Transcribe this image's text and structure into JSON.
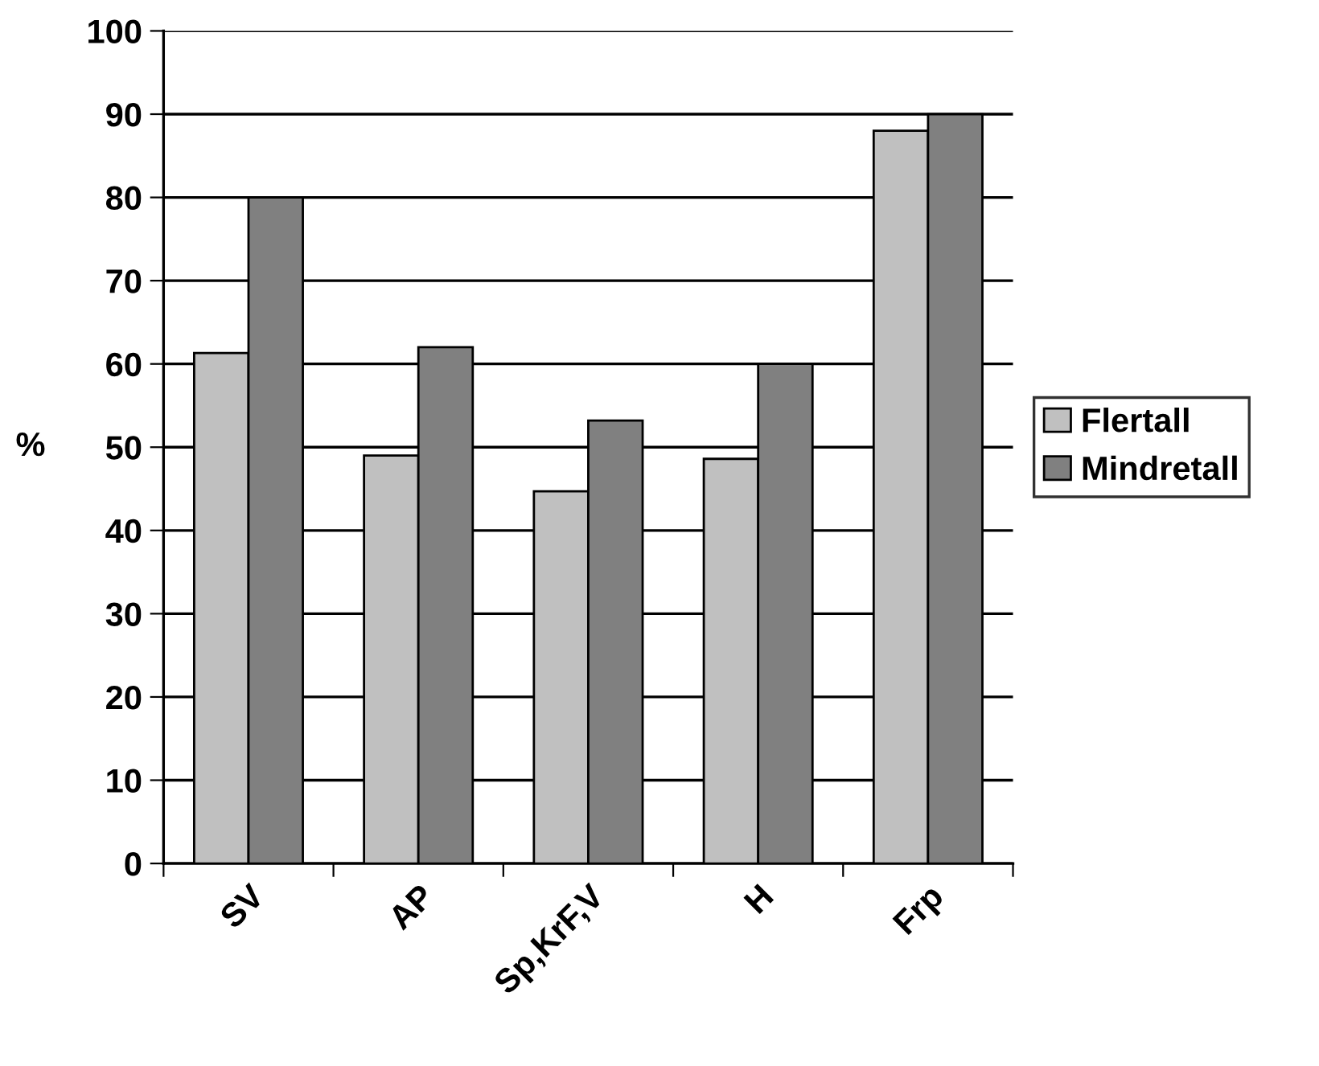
{
  "chart_data": {
    "type": "bar",
    "ylabel": "%",
    "categories": [
      "SV",
      "AP",
      "Sp,KrF,V",
      "H",
      "Frp"
    ],
    "series": [
      {
        "name": "Flertall",
        "color": "#c0c0c0",
        "values": [
          61.3,
          49,
          44.7,
          48.6,
          88
        ]
      },
      {
        "name": "Mindretall",
        "color": "#808080",
        "values": [
          80,
          62,
          53.2,
          60,
          90
        ]
      }
    ],
    "ylim": [
      0,
      100
    ],
    "yticks": [
      0,
      10,
      20,
      30,
      40,
      50,
      60,
      70,
      80,
      90,
      100
    ],
    "grid": "y",
    "legend": "right"
  }
}
